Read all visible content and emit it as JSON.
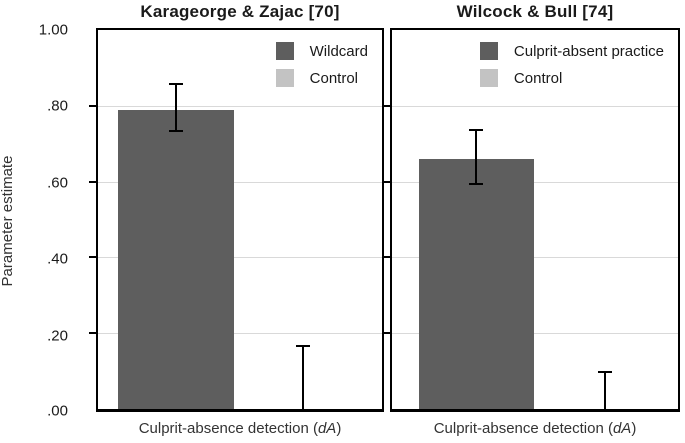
{
  "chart_data": {
    "type": "bar",
    "ylabel": "Parameter estimate",
    "ylim": [
      0,
      1.0
    ],
    "yticks": [
      1.0,
      0.8,
      0.6,
      0.4,
      0.2,
      0.0
    ],
    "ytick_labels": [
      "1.00",
      ".80",
      ".60",
      ".40",
      ".20",
      ".00"
    ],
    "grid": "horizontal",
    "legend_position": "top-right-inside",
    "xcategory": {
      "full": "Culprit-absence detection (dA)",
      "prefix": "Culprit-absence detection (",
      "italic": "dA",
      "suffix": ")"
    },
    "colors": {
      "treatment_bar": "#5e5e5e",
      "control_swatch": "#c3c3c3",
      "gridline": "#d9d9d9",
      "axis": "#000000"
    },
    "panels": [
      {
        "title": "Karageorge & Zajac [70]",
        "legend": [
          {
            "label": "Wildcard",
            "color": "#5e5e5e"
          },
          {
            "label": "Control",
            "color": "#c3c3c3"
          }
        ],
        "series": [
          {
            "name": "Wildcard",
            "value": 0.79,
            "ci_low": 0.73,
            "ci_high": 0.86,
            "color": "#5e5e5e"
          },
          {
            "name": "Control",
            "value": 0.0,
            "ci_low": 0.0,
            "ci_high": 0.17,
            "color": "#c3c3c3"
          }
        ]
      },
      {
        "title": "Wilcock & Bull [74]",
        "legend": [
          {
            "label": "Culprit-absent practice",
            "color": "#5e5e5e"
          },
          {
            "label": "Control",
            "color": "#c3c3c3"
          }
        ],
        "series": [
          {
            "name": "Culprit-absent practice",
            "value": 0.66,
            "ci_low": 0.59,
            "ci_high": 0.74,
            "color": "#5e5e5e"
          },
          {
            "name": "Control",
            "value": 0.0,
            "ci_low": 0.0,
            "ci_high": 0.1,
            "color": "#c3c3c3"
          }
        ]
      }
    ]
  }
}
